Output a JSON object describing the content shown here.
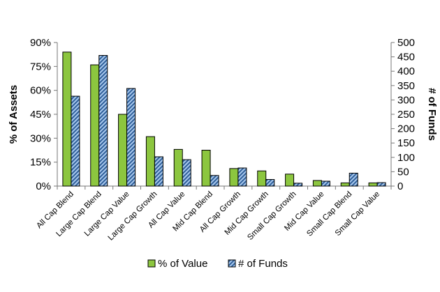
{
  "chart_data": {
    "type": "bar",
    "categories": [
      "All Cap Blend",
      "Large Cap Blend",
      "Large Cap Value",
      "Large Cap Growth",
      "All Cap Value",
      "Mid Cap Blend",
      "All Cap Growth",
      "Mid Cap Growth",
      "Small Cap Growth",
      "Mid Cap Value",
      "Small Cap Blend",
      "Small Cap Value"
    ],
    "series": [
      {
        "name": "% of Value",
        "axis": "left",
        "color": "#8cc63f",
        "values": [
          84,
          76,
          45,
          31,
          23,
          22.5,
          11,
          9.5,
          7.5,
          3.5,
          2,
          2
        ]
      },
      {
        "name": "# of Funds",
        "axis": "right",
        "color": "#6f9fd8",
        "values": [
          313,
          455,
          340,
          102,
          92,
          37,
          63,
          23,
          10,
          17,
          45,
          12
        ]
      }
    ],
    "left_axis": {
      "label": "% of Assets",
      "min": 0,
      "max": 90,
      "ticks": [
        "0%",
        "15%",
        "30%",
        "45%",
        "60%",
        "75%",
        "90%"
      ]
    },
    "right_axis": {
      "label": "# of Funds",
      "min": 0,
      "max": 500,
      "ticks": [
        "0",
        "50",
        "100",
        "150",
        "200",
        "250",
        "300",
        "350",
        "400",
        "450",
        "500"
      ]
    },
    "grid": false,
    "legend": "bottom"
  }
}
